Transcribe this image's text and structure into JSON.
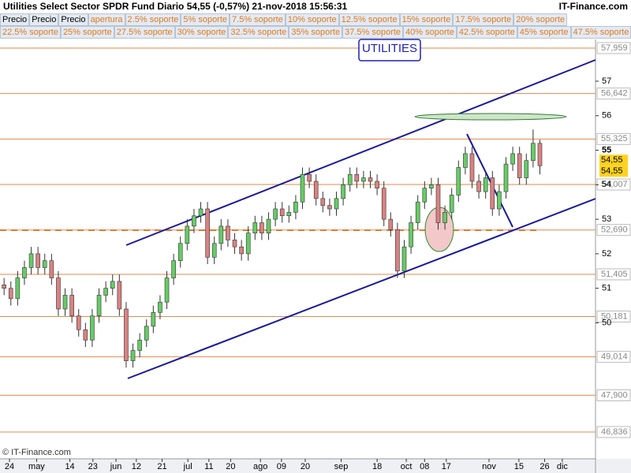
{
  "header": {
    "title": "Utilities Select Sector SPDR Fund  Diario  54,55 (-0,57%)  21-nov-2018 15:56:31",
    "brand": "IT-Finance.com"
  },
  "toolbar": {
    "rows": [
      [
        "Precio",
        "Precio",
        "Precio",
        "apertura",
        "2.5% soporte",
        "5% soporte",
        "7.5% soporte",
        "10% soporte",
        "12.5% soporte",
        "15% soporte",
        "17.5% soporte",
        "20% soporte"
      ],
      [
        "22.5% soporte",
        "25% soporte",
        "27.5% soporte",
        "30% soporte",
        "32.5% soporte",
        "35% soporte",
        "37.5% soporte",
        "40% soporte",
        "42.5% soporte",
        "45% soporte",
        "47.5% soporte"
      ]
    ]
  },
  "chart_data": {
    "type": "candlestick",
    "annotation": "UTILITIES",
    "copyright": "© IT-Finance.com",
    "up_color": "#66cc66",
    "down_color": "#d98282",
    "x": [
      0,
      1,
      2,
      3,
      4,
      5,
      6,
      7,
      8,
      9,
      10,
      11,
      12,
      13,
      14,
      15,
      16,
      17,
      18,
      19,
      20,
      21,
      22,
      23,
      24,
      25,
      26,
      27,
      28,
      29,
      30,
      31,
      32,
      33,
      34,
      35,
      36,
      37,
      38,
      39,
      40,
      41,
      42,
      43,
      44,
      45,
      46,
      47,
      48,
      49,
      50,
      51,
      52,
      53,
      54,
      55,
      56,
      57,
      58,
      59,
      60,
      61,
      62,
      63,
      64,
      65,
      66,
      67,
      68,
      69,
      70,
      71,
      72,
      73,
      74,
      75,
      76,
      77,
      78,
      79
    ],
    "open": [
      51.1,
      51.0,
      50.7,
      51.3,
      51.6,
      52.0,
      51.6,
      51.8,
      51.3,
      50.4,
      50.8,
      50.2,
      49.8,
      49.5,
      50.2,
      50.8,
      51.0,
      51.2,
      50.4,
      48.9,
      49.2,
      49.5,
      49.9,
      50.3,
      50.6,
      51.3,
      51.8,
      52.3,
      52.8,
      53.1,
      53.3,
      51.9,
      52.3,
      52.8,
      52.4,
      52.2,
      52.0,
      52.6,
      52.9,
      52.6,
      53.0,
      53.3,
      53.1,
      53.2,
      53.5,
      54.3,
      54.1,
      53.6,
      53.4,
      53.3,
      53.6,
      54.0,
      54.3,
      54.1,
      54.2,
      54.1,
      53.9,
      53.0,
      52.7,
      51.5,
      52.2,
      52.9,
      53.5,
      53.9,
      54.0,
      52.9,
      53.2,
      53.7,
      54.5,
      54.9,
      54.1,
      53.8,
      54.2,
      53.3,
      53.8,
      54.6,
      54.9,
      54.2,
      54.7,
      55.2
    ],
    "high": [
      51.3,
      51.2,
      51.5,
      51.8,
      52.2,
      52.2,
      52.0,
      52.0,
      51.5,
      51.0,
      51.0,
      50.4,
      50.0,
      50.4,
      51.0,
      51.2,
      51.4,
      51.4,
      50.6,
      49.4,
      49.7,
      50.1,
      50.5,
      50.8,
      51.5,
      52.0,
      52.5,
      53.0,
      53.3,
      53.5,
      53.5,
      52.5,
      53.0,
      53.0,
      52.6,
      52.4,
      52.8,
      53.1,
      53.1,
      53.2,
      53.5,
      53.5,
      53.4,
      53.7,
      54.5,
      54.5,
      54.3,
      53.8,
      53.6,
      53.8,
      54.2,
      54.5,
      54.5,
      54.4,
      54.4,
      54.3,
      54.1,
      53.2,
      52.9,
      52.4,
      53.1,
      53.7,
      54.1,
      54.2,
      54.2,
      53.4,
      53.9,
      54.7,
      55.1,
      55.1,
      54.3,
      54.4,
      54.4,
      54.0,
      54.8,
      55.1,
      55.1,
      54.9,
      55.6,
      55.3
    ],
    "low": [
      50.8,
      50.5,
      50.5,
      51.1,
      51.4,
      51.4,
      51.4,
      51.1,
      50.2,
      50.2,
      50.0,
      49.6,
      49.3,
      49.3,
      50.0,
      50.6,
      50.8,
      50.2,
      48.7,
      48.7,
      49.0,
      49.3,
      49.7,
      50.1,
      50.4,
      51.1,
      51.6,
      52.1,
      52.6,
      52.9,
      51.7,
      51.7,
      52.1,
      52.2,
      52.0,
      51.8,
      51.8,
      52.4,
      52.4,
      52.4,
      52.8,
      52.9,
      52.9,
      53.0,
      53.3,
      53.9,
      53.4,
      53.2,
      53.1,
      53.1,
      53.4,
      53.8,
      53.9,
      53.9,
      53.9,
      53.7,
      52.8,
      52.5,
      51.3,
      51.3,
      52.0,
      52.7,
      53.3,
      53.7,
      52.7,
      52.7,
      53.0,
      53.5,
      54.3,
      53.9,
      53.6,
      53.6,
      53.1,
      53.1,
      53.6,
      54.4,
      54.0,
      54.0,
      54.5,
      54.3
    ],
    "close": [
      51.0,
      50.7,
      51.3,
      51.6,
      52.0,
      51.6,
      51.8,
      51.3,
      50.4,
      50.8,
      50.2,
      49.8,
      49.5,
      50.2,
      50.8,
      51.0,
      51.2,
      50.4,
      48.9,
      49.2,
      49.5,
      49.9,
      50.3,
      50.6,
      51.3,
      51.8,
      52.3,
      52.8,
      53.1,
      53.3,
      51.9,
      52.3,
      52.8,
      52.4,
      52.2,
      52.0,
      52.6,
      52.9,
      52.6,
      53.0,
      53.3,
      53.1,
      53.2,
      53.5,
      54.3,
      54.1,
      53.6,
      53.4,
      53.3,
      53.6,
      54.0,
      54.3,
      54.1,
      54.2,
      54.1,
      53.9,
      53.0,
      52.7,
      51.5,
      52.2,
      52.9,
      53.5,
      53.9,
      54.0,
      52.9,
      53.2,
      53.7,
      54.5,
      54.9,
      54.1,
      53.8,
      54.2,
      53.3,
      53.8,
      54.6,
      54.9,
      54.2,
      54.7,
      55.2,
      54.55
    ],
    "xlim": [
      -0.6,
      87.2
    ],
    "xticks": [
      {
        "value": 0.8,
        "label": "24"
      },
      {
        "value": 4.8,
        "label": "may"
      },
      {
        "value": 9.7,
        "label": "14"
      },
      {
        "value": 13.1,
        "label": "23"
      },
      {
        "value": 16.5,
        "label": "jun"
      },
      {
        "value": 19.5,
        "label": "12"
      },
      {
        "value": 23.3,
        "label": "21"
      },
      {
        "value": 27.1,
        "label": "jul"
      },
      {
        "value": 30.2,
        "label": "11"
      },
      {
        "value": 33.4,
        "label": "20"
      },
      {
        "value": 37.8,
        "label": "ago"
      },
      {
        "value": 40.9,
        "label": "09"
      },
      {
        "value": 44.4,
        "label": "20"
      },
      {
        "value": 49.7,
        "label": "sep"
      },
      {
        "value": 55.0,
        "label": "18"
      },
      {
        "value": 59.3,
        "label": "oct"
      },
      {
        "value": 62.0,
        "label": "08"
      },
      {
        "value": 65.2,
        "label": "17"
      },
      {
        "value": 71.5,
        "label": "nov"
      },
      {
        "value": 75.9,
        "label": "15"
      },
      {
        "value": 79.7,
        "label": "26"
      },
      {
        "value": 82.3,
        "label": "dic"
      }
    ],
    "ylim": [
      46.06,
      58.21
    ],
    "yticks": [
      50,
      51,
      52,
      53,
      54,
      55,
      56,
      57
    ],
    "levels": [
      {
        "value": 57.959,
        "label": "57,959"
      },
      {
        "value": 56.642,
        "label": "56,642"
      },
      {
        "value": 55.325,
        "label": "55,325"
      },
      {
        "value": 54.007,
        "label": "54,007"
      },
      {
        "value": 52.69,
        "label": "52,690"
      },
      {
        "value": 51.405,
        "label": "51,405"
      },
      {
        "value": 50.181,
        "label": "50,181"
      },
      {
        "value": 49.014,
        "label": "49,014"
      },
      {
        "value": 47.9,
        "label": "47,900"
      },
      {
        "value": 46.836,
        "label": "46,836"
      }
    ],
    "level_color": "#e08a4a",
    "price_labels": [
      {
        "value": 54.55,
        "label": "54,55"
      },
      {
        "value": 54.55,
        "label": "54,55"
      }
    ]
  }
}
